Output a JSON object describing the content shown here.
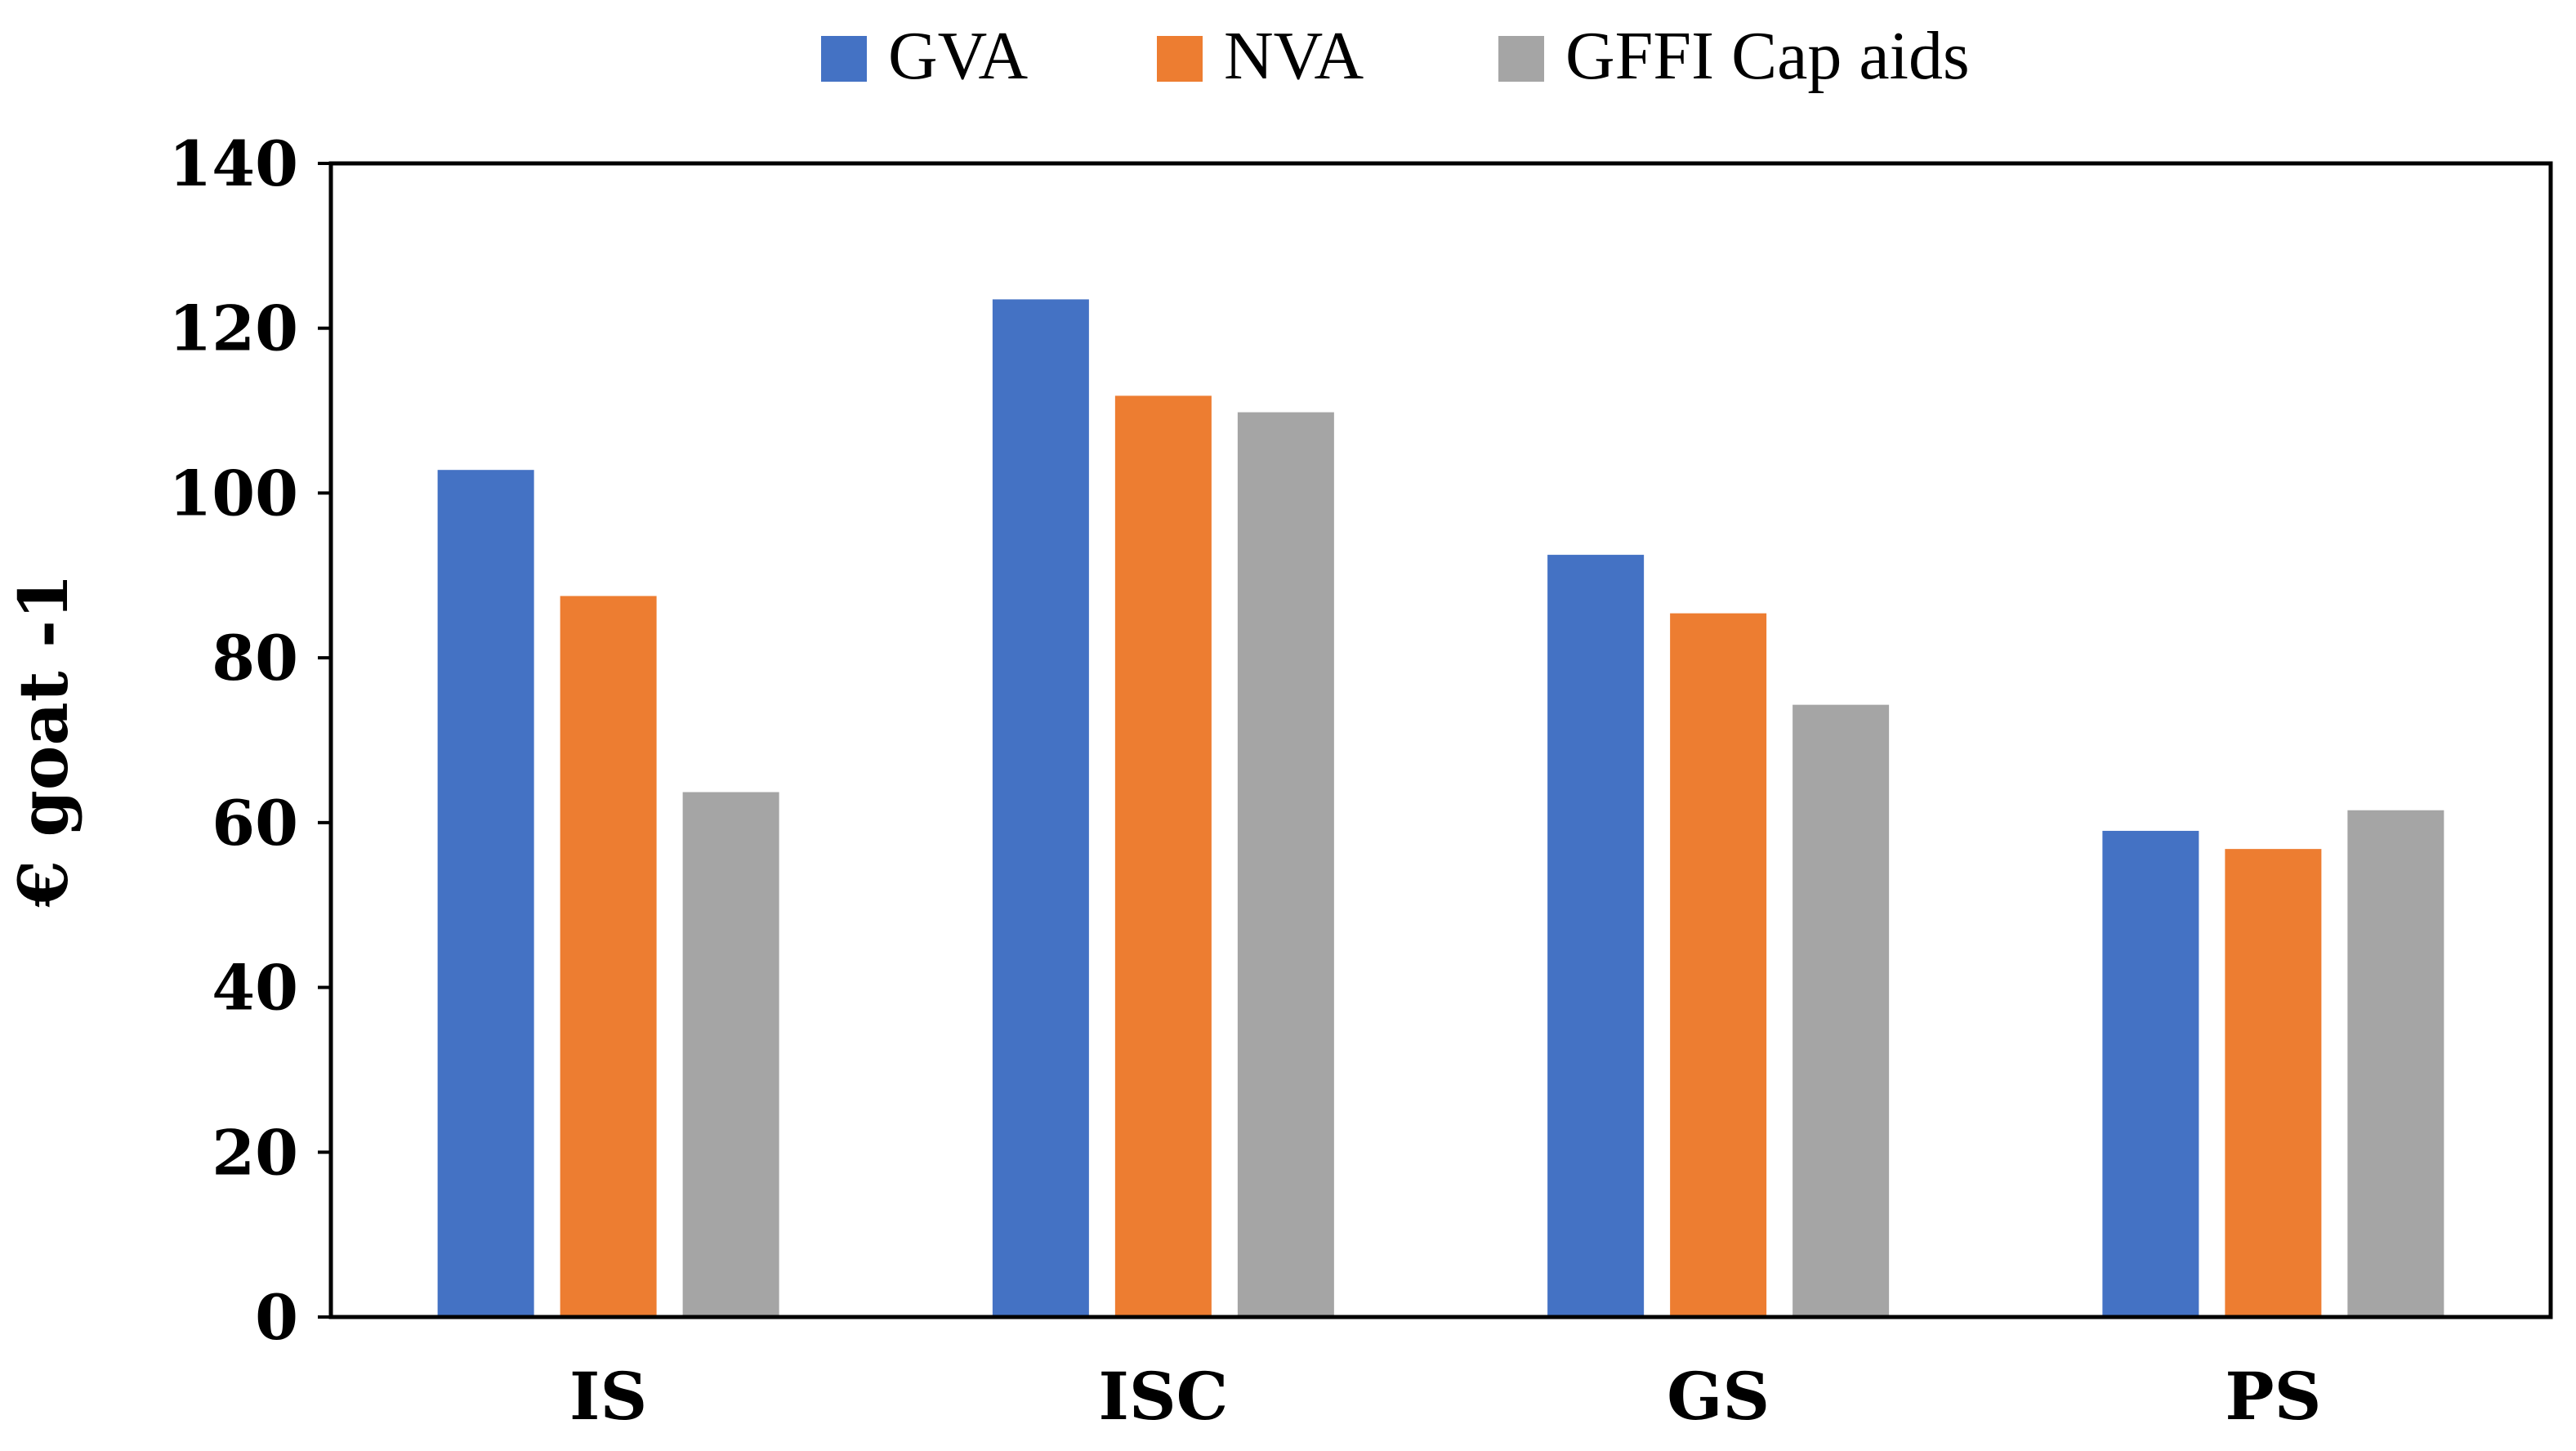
{
  "chart_data": {
    "type": "bar",
    "categories": [
      "IS",
      "ISC",
      "GS",
      "PS"
    ],
    "series": [
      {
        "name": "GVA",
        "values": [
          102.8,
          123.5,
          92.5,
          59.0
        ],
        "color": "#4472C4"
      },
      {
        "name": "NVA",
        "values": [
          87.5,
          111.8,
          85.4,
          56.8
        ],
        "color": "#ED7D31"
      },
      {
        "name": "GFFI Cap aids",
        "values": [
          63.7,
          109.8,
          74.3,
          61.5
        ],
        "color": "#A5A5A5"
      }
    ],
    "title": "",
    "xlabel": "",
    "ylabel": "€ goat -1",
    "ylim": [
      0,
      140
    ],
    "yticks": [
      0,
      20,
      40,
      60,
      80,
      100,
      120,
      140
    ],
    "grid": false,
    "legend_position": "top"
  }
}
